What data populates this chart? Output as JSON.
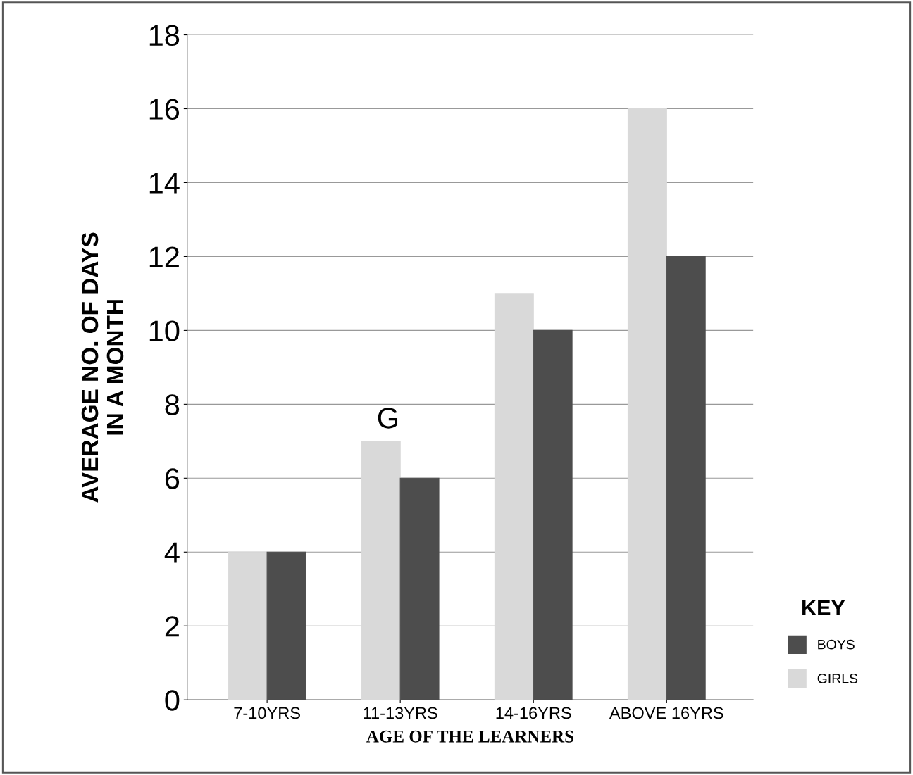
{
  "chart_data": {
    "type": "bar",
    "xlabel": "AGE OF THE LEARNERS",
    "ylabel": "AVERAGE NO. OF DAYS\nIN A MONTH",
    "legend_title": "KEY",
    "categories": [
      "7-10YRS",
      "11-13YRS",
      "14-16YRS",
      "ABOVE 16YRS"
    ],
    "series": [
      {
        "name": "GIRLS",
        "color": "#d9d9d9",
        "values": [
          4,
          7,
          11,
          16
        ]
      },
      {
        "name": "BOYS",
        "color": "#4d4d4d",
        "values": [
          4,
          6,
          10,
          12
        ]
      }
    ],
    "ylim": [
      0,
      18
    ],
    "yticks": [
      0,
      2,
      4,
      6,
      8,
      10,
      12,
      14,
      16,
      18
    ],
    "grid": "y",
    "legend": "bottom right",
    "annotations": [
      "G"
    ]
  }
}
